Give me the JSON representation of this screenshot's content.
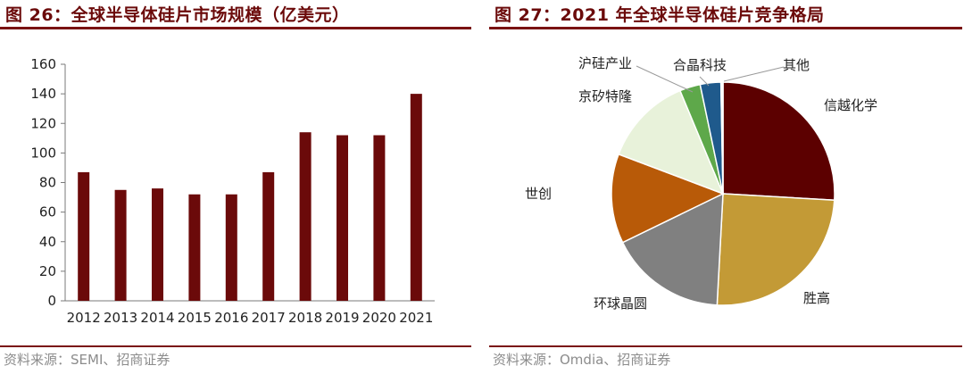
{
  "figures": [
    {
      "title": "图 26：全球半导体硅片市场规模（亿美元）",
      "source": "资料来源：SEMI、招商证券"
    },
    {
      "title": "图 27：2021 年全球半导体硅片竞争格局",
      "source": "资料来源：Omdia、招商证券"
    }
  ],
  "chart_data": [
    {
      "type": "bar",
      "title": "",
      "categories": [
        "2012",
        "2013",
        "2014",
        "2015",
        "2016",
        "2017",
        "2018",
        "2019",
        "2020",
        "2021"
      ],
      "values": [
        87,
        75,
        76,
        72,
        72,
        87,
        114,
        112,
        112,
        140
      ],
      "ylim": [
        0,
        160
      ],
      "yticks": [
        0,
        20,
        40,
        60,
        80,
        100,
        120,
        140,
        160
      ],
      "xlabel": "",
      "ylabel": "",
      "grid": false,
      "bar_color": "#6b0a0a"
    },
    {
      "type": "pie",
      "title": "",
      "slices": [
        {
          "label": "信越化学",
          "value": 26,
          "color": "#5c0000"
        },
        {
          "label": "胜高",
          "value": 25,
          "color": "#c39a36"
        },
        {
          "label": "环球晶圆",
          "value": 17,
          "color": "#808080"
        },
        {
          "label": "世创",
          "value": 13,
          "color": "#b85a08"
        },
        {
          "label": "京矽特隆",
          "value": 13,
          "color": "#e8f2da"
        },
        {
          "label": "沪硅产业",
          "value": 3,
          "color": "#5ea84a"
        },
        {
          "label": "合晶科技",
          "value": 3,
          "color": "#1f5a8c"
        },
        {
          "label": "其他",
          "value": 0.3,
          "color": "#ffffff"
        }
      ],
      "start_angle_deg": 0,
      "direction": "clockwise"
    }
  ]
}
